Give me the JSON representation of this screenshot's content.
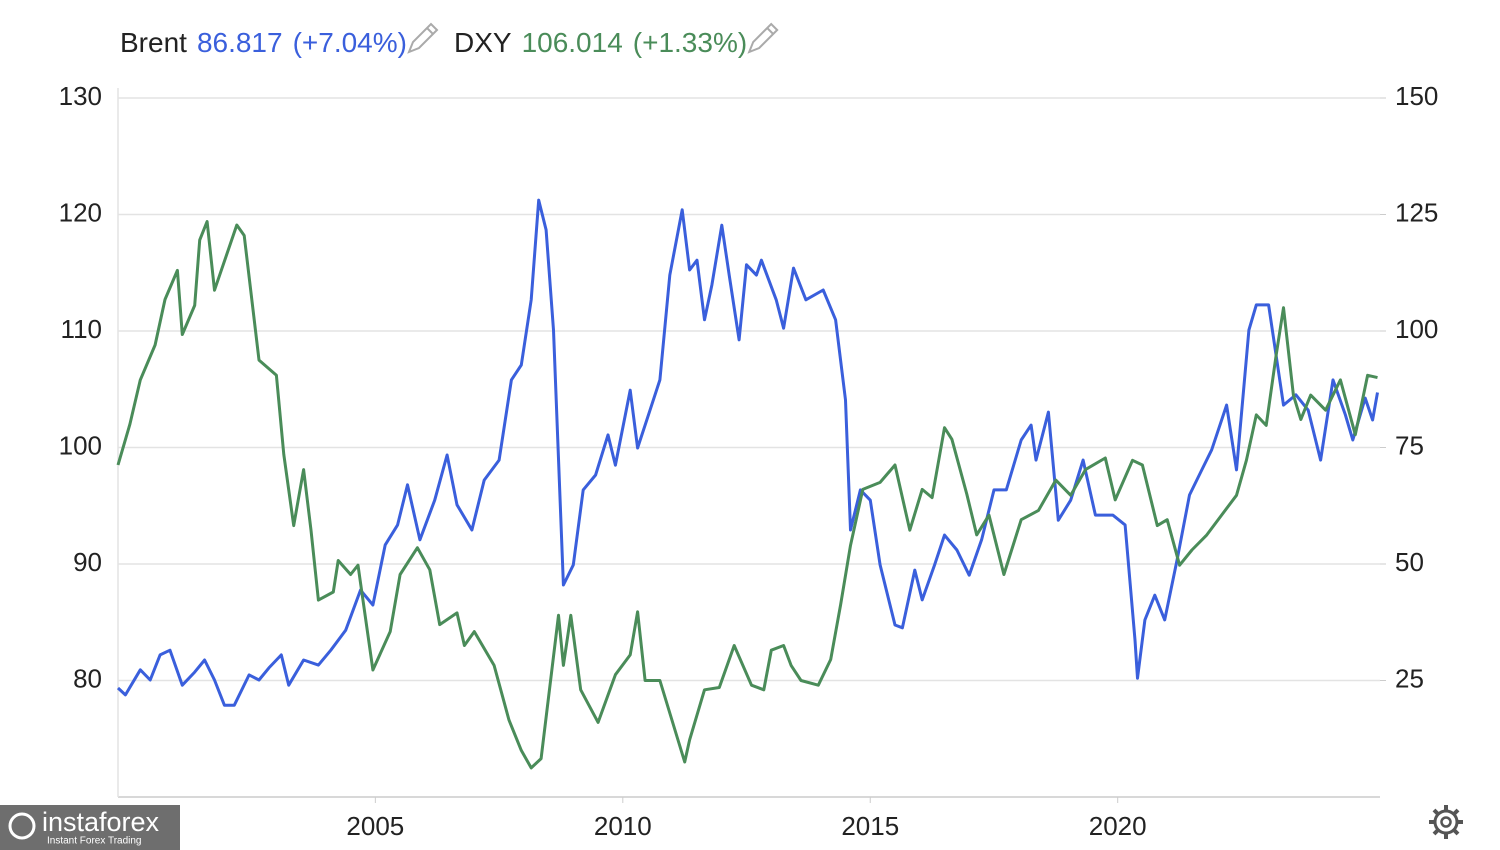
{
  "chart_data": {
    "type": "line",
    "series": [
      {
        "name": "Brent",
        "last": "86.817",
        "change": "(+7.04%)",
        "color": "#3a5fdc",
        "axis": "y2",
        "x": [
          1999.8,
          1999.95,
          2000.25,
          2000.45,
          2000.65,
          2000.85,
          2001.1,
          2001.35,
          2001.55,
          2001.75,
          2001.95,
          2002.15,
          2002.45,
          2002.65,
          2002.85,
          2003.1,
          2003.25,
          2003.55,
          2003.85,
          2004.1,
          2004.4,
          2004.7,
          2004.95,
          2005.2,
          2005.45,
          2005.65,
          2005.9,
          2006.2,
          2006.45,
          2006.65,
          2006.95,
          2007.2,
          2007.5,
          2007.75,
          2007.95,
          2008.15,
          2008.3,
          2008.45,
          2008.6,
          2008.8,
          2009.0,
          2009.2,
          2009.45,
          2009.7,
          2009.85,
          2010.15,
          2010.3,
          2010.55,
          2010.75,
          2010.95,
          2011.2,
          2011.35,
          2011.5,
          2011.65,
          2011.8,
          2012.0,
          2012.15,
          2012.35,
          2012.5,
          2012.7,
          2012.8,
          2013.1,
          2013.25,
          2013.45,
          2013.7,
          2014.05,
          2014.3,
          2014.5,
          2014.6,
          2014.8,
          2015.0,
          2015.2,
          2015.5,
          2015.65,
          2015.9,
          2016.05,
          2016.3,
          2016.5,
          2016.75,
          2017.0,
          2017.25,
          2017.5,
          2017.75,
          2018.05,
          2018.25,
          2018.35,
          2018.6,
          2018.8,
          2019.05,
          2019.3,
          2019.55,
          2019.9,
          2020.15,
          2020.35,
          2020.4,
          2020.55,
          2020.75,
          2020.95,
          2021.2,
          2021.45,
          2021.7,
          2021.9,
          2022.2,
          2022.4,
          2022.65,
          2022.8,
          2023.05,
          2023.35,
          2023.6,
          2023.85,
          2024.1,
          2024.35,
          2024.6,
          2024.75,
          2025.0,
          2025.15,
          2025.25
        ],
        "values": [
          23.4,
          21.9,
          27.3,
          25.1,
          30.5,
          31.5,
          24.0,
          26.8,
          29.4,
          25.1,
          19.7,
          19.7,
          26.2,
          25.1,
          27.7,
          30.5,
          24.0,
          29.4,
          28.3,
          31.5,
          35.8,
          44.4,
          41.2,
          54.1,
          58.4,
          67.0,
          55.2,
          63.7,
          73.4,
          62.7,
          57.3,
          68.0,
          72.3,
          89.5,
          92.7,
          106.7,
          128.1,
          121.7,
          100.2,
          45.5,
          49.8,
          65.9,
          69.1,
          77.7,
          71.2,
          87.3,
          74.9,
          83.0,
          89.5,
          112.0,
          126.0,
          113.1,
          115.2,
          102.4,
          109.9,
          122.7,
          112.0,
          98.1,
          114.2,
          112.0,
          115.2,
          106.7,
          100.6,
          113.5,
          106.7,
          108.8,
          102.4,
          85.2,
          57.3,
          65.9,
          63.7,
          49.8,
          36.9,
          36.3,
          48.7,
          42.3,
          49.8,
          56.2,
          53.0,
          47.6,
          55.2,
          65.9,
          65.9,
          76.6,
          79.8,
          72.3,
          82.6,
          59.4,
          63.7,
          72.3,
          60.5,
          60.5,
          58.4,
          33.7,
          25.5,
          38.0,
          43.3,
          38.0,
          50.9,
          64.8,
          70.2,
          74.5,
          84.1,
          70.2,
          100.2,
          105.6,
          105.6,
          84.1,
          86.3,
          83.0,
          72.3,
          89.5,
          82.0,
          76.6,
          85.6,
          80.9,
          86.8
        ]
      },
      {
        "name": "DXY",
        "last": "106.014",
        "change": "(+1.33%)",
        "color": "#4a8c59",
        "axis": "y",
        "x": [
          1999.8,
          2000.04,
          2000.25,
          2000.55,
          2000.75,
          2001.0,
          2001.1,
          2001.35,
          2001.45,
          2001.6,
          2001.75,
          2002.2,
          2002.35,
          2002.65,
          2003.0,
          2003.15,
          2003.35,
          2003.55,
          2003.7,
          2003.85,
          2004.15,
          2004.25,
          2004.5,
          2004.65,
          2004.95,
          2005.3,
          2005.5,
          2005.85,
          2006.1,
          2006.3,
          2006.65,
          2006.8,
          2007.0,
          2007.4,
          2007.7,
          2007.95,
          2008.15,
          2008.35,
          2008.7,
          2008.8,
          2008.95,
          2009.15,
          2009.5,
          2009.85,
          2010.15,
          2010.3,
          2010.45,
          2010.75,
          2011.25,
          2011.35,
          2011.65,
          2011.95,
          2012.25,
          2012.6,
          2012.85,
          2013.0,
          2013.25,
          2013.4,
          2013.6,
          2013.95,
          2014.2,
          2014.4,
          2014.6,
          2014.85,
          2015.2,
          2015.5,
          2015.8,
          2016.05,
          2016.25,
          2016.5,
          2016.65,
          2016.95,
          2017.15,
          2017.4,
          2017.7,
          2018.05,
          2018.4,
          2018.75,
          2019.05,
          2019.35,
          2019.75,
          2019.95,
          2020.3,
          2020.5,
          2020.8,
          2021.0,
          2021.25,
          2021.5,
          2021.8,
          2022.1,
          2022.4,
          2022.6,
          2022.8,
          2023.0,
          2023.2,
          2023.35,
          2023.55,
          2023.7,
          2023.9,
          2024.2,
          2024.5,
          2024.8,
          2025.05,
          2025.25
        ],
        "values": [
          98.5,
          102.0,
          105.8,
          108.8,
          112.7,
          115.2,
          109.7,
          112.2,
          117.8,
          119.4,
          113.5,
          119.1,
          118.2,
          107.5,
          106.2,
          99.4,
          93.3,
          98.1,
          92.9,
          86.9,
          87.6,
          90.3,
          89.1,
          89.9,
          80.9,
          84.2,
          89.1,
          91.4,
          89.5,
          84.8,
          85.8,
          83.0,
          84.2,
          81.3,
          76.6,
          74.0,
          72.5,
          73.3,
          85.6,
          81.3,
          85.6,
          79.2,
          76.4,
          80.5,
          82.2,
          85.9,
          80.0,
          80.0,
          73.0,
          74.9,
          79.2,
          79.4,
          83.0,
          79.6,
          79.2,
          82.6,
          83.0,
          81.3,
          80.0,
          79.6,
          81.8,
          86.5,
          91.6,
          96.4,
          97.0,
          98.5,
          92.9,
          96.4,
          95.7,
          101.7,
          100.7,
          96.0,
          92.5,
          94.2,
          89.1,
          93.8,
          94.6,
          97.2,
          95.9,
          98.1,
          99.1,
          95.5,
          98.9,
          98.5,
          93.3,
          93.8,
          89.9,
          91.2,
          92.5,
          94.2,
          95.9,
          98.9,
          102.8,
          101.9,
          107.9,
          112.0,
          104.5,
          102.4,
          104.5,
          103.2,
          105.8,
          101.1,
          106.2,
          106.0
        ]
      }
    ],
    "xlim": [
      1999.8,
      2025.3
    ],
    "xticks": [
      2005,
      2010,
      2015,
      2020
    ],
    "ylim": [
      70,
      130
    ],
    "yticks": [
      80,
      90,
      100,
      110,
      120,
      130
    ],
    "y2lim": [
      0,
      150
    ],
    "y2ticks": [
      25,
      50,
      75,
      100,
      125,
      150
    ],
    "grid": true,
    "watermark": {
      "brand": "instaforex",
      "tagline": "Instant Forex Trading"
    }
  }
}
